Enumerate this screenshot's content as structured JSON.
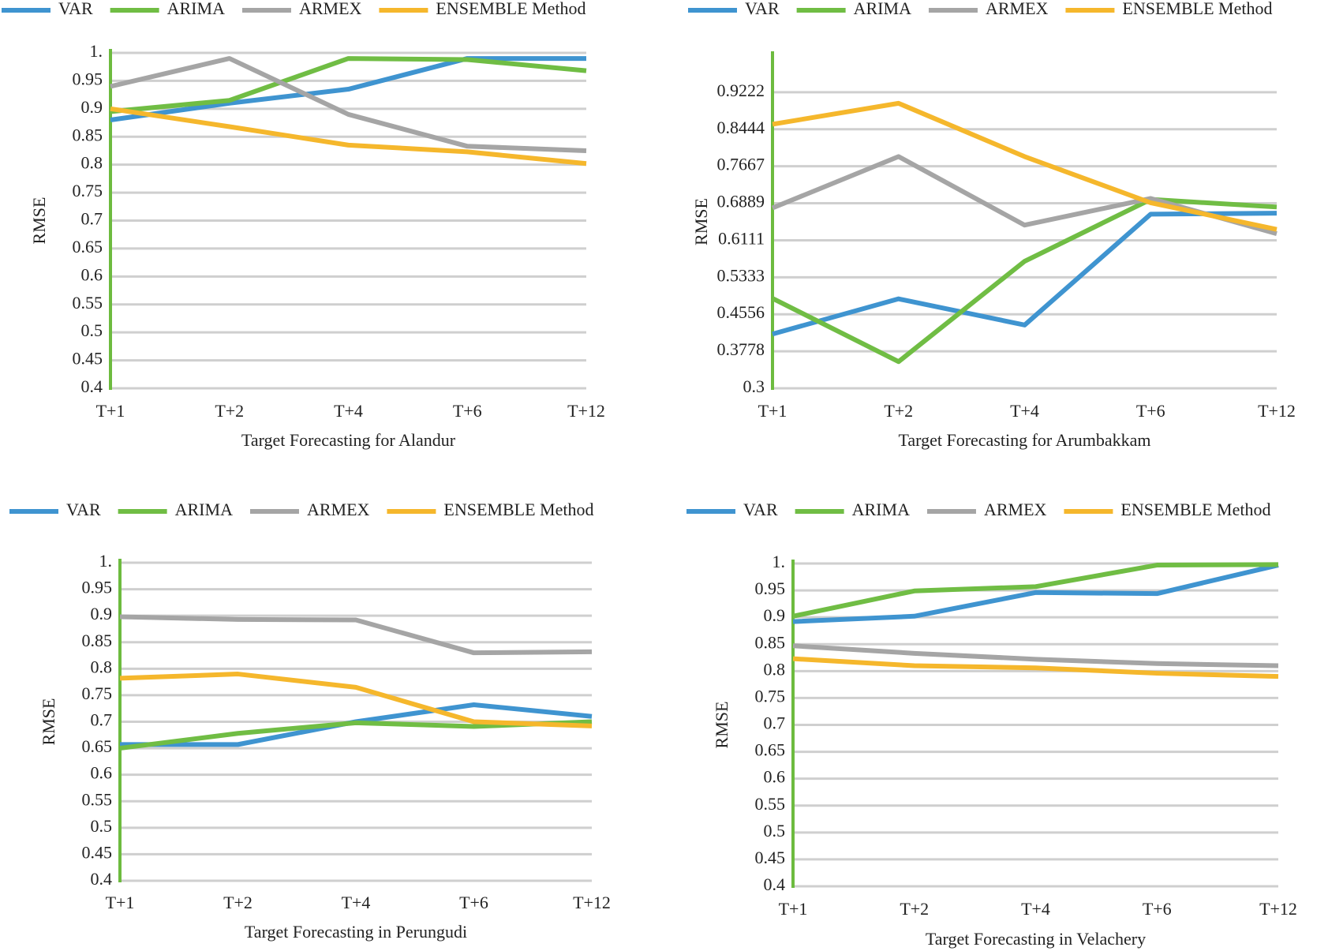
{
  "chart_data": [
    {
      "type": "line",
      "x_label": "Target Forecasting for Alandur",
      "y_label": "RMSE",
      "categories": [
        "T+1",
        "T+2",
        "T+4",
        "T+6",
        "T+12"
      ],
      "ylim": [
        0.4,
        1.0
      ],
      "yticks": [
        0.4,
        0.45,
        0.5,
        0.55,
        0.6,
        0.65,
        0.7,
        0.75,
        0.8,
        0.85,
        0.9,
        0.95,
        {
          "value": 1,
          "label": "1."
        }
      ],
      "grid": true,
      "series": [
        {
          "name": "VAR",
          "color": "#3f94d0",
          "values": [
            0.88,
            0.91,
            0.935,
            0.99,
            0.99
          ]
        },
        {
          "name": "ARIMA",
          "color": "#70bd44",
          "values": [
            0.895,
            0.915,
            0.99,
            0.988,
            0.968
          ]
        },
        {
          "name": "ARMEX",
          "color": "#a5a5a5",
          "values": [
            0.94,
            0.99,
            0.89,
            0.833,
            0.825
          ]
        },
        {
          "name": "ENSEMBLE Method",
          "color": "#f5b72c",
          "values": [
            0.9,
            0.868,
            0.835,
            0.823,
            0.802
          ]
        }
      ]
    },
    {
      "type": "line",
      "x_label": "Target Forecasting for Arumbakkam",
      "y_label": "RMSE",
      "categories": [
        "T+1",
        "T+2",
        "T+4",
        "T+6",
        "T+12"
      ],
      "ylim": [
        0.3,
        1.0
      ],
      "yticks": [
        0.3,
        0.3778,
        0.4556,
        0.5333,
        0.6111,
        0.6889,
        0.7667,
        0.8444,
        0.9222
      ],
      "grid": true,
      "series": [
        {
          "name": "VAR",
          "color": "#3f94d0",
          "values": [
            0.414,
            0.488,
            0.433,
            0.666,
            0.668
          ]
        },
        {
          "name": "ARIMA",
          "color": "#70bd44",
          "values": [
            0.489,
            0.356,
            0.567,
            0.697,
            0.681
          ]
        },
        {
          "name": "ARMEX",
          "color": "#a5a5a5",
          "values": [
            0.679,
            0.787,
            0.643,
            0.699,
            0.625
          ]
        },
        {
          "name": "ENSEMBLE Method",
          "color": "#f5b72c",
          "values": [
            0.855,
            0.899,
            0.787,
            0.69,
            0.634
          ]
        }
      ]
    },
    {
      "type": "line",
      "x_label": "Target Forecasting in Perungudi",
      "y_label": "RMSE",
      "categories": [
        "T+1",
        "T+2",
        "T+4",
        "T+6",
        "T+12"
      ],
      "ylim": [
        0.4,
        1.0
      ],
      "yticks": [
        0.4,
        0.45,
        0.5,
        0.55,
        0.6,
        0.65,
        0.7,
        0.75,
        0.8,
        0.85,
        0.9,
        0.95,
        {
          "value": 1,
          "label": "1."
        }
      ],
      "grid": true,
      "series": [
        {
          "name": "VAR",
          "color": "#3f94d0",
          "values": [
            0.657,
            0.657,
            0.7,
            0.732,
            0.71
          ]
        },
        {
          "name": "ARIMA",
          "color": "#70bd44",
          "values": [
            0.65,
            0.678,
            0.698,
            0.691,
            0.7
          ]
        },
        {
          "name": "ARMEX",
          "color": "#a5a5a5",
          "values": [
            0.898,
            0.893,
            0.892,
            0.83,
            0.832
          ]
        },
        {
          "name": "ENSEMBLE Method",
          "color": "#f5b72c",
          "values": [
            0.782,
            0.79,
            0.765,
            0.7,
            0.692
          ]
        }
      ]
    },
    {
      "type": "line",
      "x_label": "Target Forecasting in Velachery",
      "y_label": "RMSE",
      "categories": [
        "T+1",
        "T+2",
        "T+4",
        "T+6",
        "T+12"
      ],
      "ylim": [
        0.4,
        1.0
      ],
      "yticks": [
        0.4,
        0.45,
        0.5,
        0.55,
        0.6,
        0.65,
        0.7,
        0.75,
        0.8,
        0.85,
        0.9,
        0.95,
        {
          "value": 1,
          "label": "1."
        }
      ],
      "grid": true,
      "series": [
        {
          "name": "VAR",
          "color": "#3f94d0",
          "values": [
            0.892,
            0.902,
            0.946,
            0.944,
            0.997
          ]
        },
        {
          "name": "ARIMA",
          "color": "#70bd44",
          "values": [
            0.902,
            0.949,
            0.957,
            0.997,
            0.998
          ]
        },
        {
          "name": "ARMEX",
          "color": "#a5a5a5",
          "values": [
            0.847,
            0.833,
            0.822,
            0.814,
            0.81
          ]
        },
        {
          "name": "ENSEMBLE Method",
          "color": "#f5b72c",
          "values": [
            0.823,
            0.81,
            0.806,
            0.796,
            0.79
          ]
        }
      ]
    }
  ]
}
